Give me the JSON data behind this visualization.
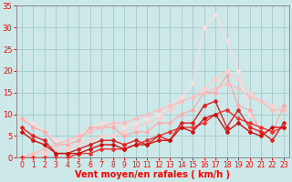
{
  "background_color": "#cce8e8",
  "grid_color": "#aacccc",
  "xlabel": "Vent moyen/en rafales ( km/h )",
  "xlim_min": -0.5,
  "xlim_max": 23.5,
  "ylim_min": 0,
  "ylim_max": 35,
  "yticks": [
    0,
    5,
    10,
    15,
    20,
    25,
    30,
    35
  ],
  "xticks": [
    0,
    1,
    2,
    3,
    4,
    5,
    6,
    7,
    8,
    9,
    10,
    11,
    12,
    13,
    14,
    15,
    16,
    17,
    18,
    19,
    20,
    21,
    22,
    23
  ],
  "series": [
    {
      "x": [
        0,
        1,
        2,
        3,
        4,
        5,
        6,
        7,
        8,
        9,
        10,
        11,
        12,
        13,
        14,
        15,
        16,
        17,
        18,
        19,
        20,
        21,
        22,
        23
      ],
      "y": [
        7,
        5,
        4,
        1,
        1,
        2,
        3,
        4,
        4,
        3,
        4,
        3,
        5,
        4,
        8,
        8,
        12,
        13,
        7,
        11,
        7,
        6,
        4,
        8
      ],
      "color": "#dd2222",
      "marker": "D",
      "markersize": 2.0,
      "linewidth": 1.0,
      "linestyle": "-",
      "zorder": 4
    },
    {
      "x": [
        0,
        1,
        2,
        3,
        4,
        5,
        6,
        7,
        8,
        9,
        10,
        11,
        12,
        13,
        14,
        15,
        16,
        17,
        18,
        19,
        20,
        21,
        22,
        23
      ],
      "y": [
        6,
        4,
        3,
        1,
        1,
        1,
        2,
        3,
        3,
        2,
        3,
        3,
        4,
        4,
        7,
        6,
        9,
        10,
        6,
        8,
        6,
        5,
        7,
        7
      ],
      "color": "#cc1111",
      "marker": "D",
      "markersize": 2.0,
      "linewidth": 1.0,
      "linestyle": "-",
      "zorder": 4
    },
    {
      "x": [
        0,
        1,
        2,
        3,
        4,
        5,
        6,
        7,
        8,
        9,
        10,
        11,
        12,
        13,
        14,
        15,
        16,
        17,
        18,
        19,
        20,
        21,
        22,
        23
      ],
      "y": [
        0,
        0,
        0,
        0,
        0,
        1,
        1,
        2,
        2,
        2,
        3,
        4,
        5,
        6,
        7,
        7,
        8,
        10,
        11,
        9,
        8,
        7,
        6,
        7
      ],
      "color": "#ee3333",
      "marker": "D",
      "markersize": 2.0,
      "linewidth": 1.0,
      "linestyle": "-",
      "zorder": 3
    },
    {
      "x": [
        0,
        1,
        2,
        3,
        4,
        5,
        6,
        7,
        8,
        9,
        10,
        11,
        12,
        13,
        14,
        15,
        16,
        17,
        18,
        19,
        20,
        21,
        22,
        23
      ],
      "y": [
        9,
        7,
        6,
        3,
        3,
        4,
        7,
        7,
        7,
        5,
        6,
        6,
        8,
        8,
        10,
        11,
        15,
        15,
        19,
        12,
        11,
        6,
        6,
        12
      ],
      "color": "#ffaaaa",
      "marker": "D",
      "markersize": 2.0,
      "linewidth": 0.9,
      "linestyle": "-",
      "zorder": 2
    },
    {
      "x": [
        0,
        1,
        2,
        3,
        4,
        5,
        6,
        7,
        8,
        9,
        10,
        11,
        12,
        13,
        14,
        15,
        16,
        17,
        18,
        19,
        20,
        21,
        22,
        23
      ],
      "y": [
        0,
        1,
        2,
        3,
        4,
        5,
        6,
        7,
        8,
        8,
        9,
        10,
        11,
        12,
        13,
        14,
        15,
        16,
        17,
        16,
        14,
        13,
        11,
        11
      ],
      "color": "#ffbbbb",
      "marker": "D",
      "markersize": 2.0,
      "linewidth": 0.9,
      "linestyle": "-",
      "zorder": 2
    },
    {
      "x": [
        0,
        1,
        2,
        3,
        4,
        5,
        6,
        7,
        8,
        9,
        10,
        11,
        12,
        13,
        14,
        15,
        16,
        17,
        18,
        19,
        20,
        21,
        22,
        23
      ],
      "y": [
        0,
        1,
        1,
        2,
        2,
        3,
        4,
        5,
        5,
        6,
        7,
        8,
        9,
        11,
        13,
        14,
        16,
        18,
        20,
        18,
        15,
        13,
        12,
        11
      ],
      "color": "#ffcccc",
      "marker": "D",
      "markersize": 2.0,
      "linewidth": 0.9,
      "linestyle": "-",
      "zorder": 1
    },
    {
      "x": [
        0,
        1,
        2,
        3,
        4,
        5,
        6,
        7,
        8,
        9,
        10,
        11,
        12,
        13,
        14,
        15,
        16,
        17,
        18,
        19,
        20,
        21,
        22,
        23
      ],
      "y": [
        9,
        8,
        6,
        4,
        4,
        5,
        7,
        8,
        8,
        7,
        8,
        9,
        10,
        12,
        14,
        17,
        30,
        33,
        27,
        20,
        10,
        7,
        6,
        7
      ],
      "color": "#ffdddd",
      "marker": "D",
      "markersize": 2.0,
      "linewidth": 0.9,
      "linestyle": "-",
      "zorder": 1
    }
  ],
  "tick_color": "#ff0000",
  "label_color": "#ff0000",
  "label_fontsize": 7,
  "tick_fontsize_x": 5.5,
  "tick_fontsize_y": 6.0
}
